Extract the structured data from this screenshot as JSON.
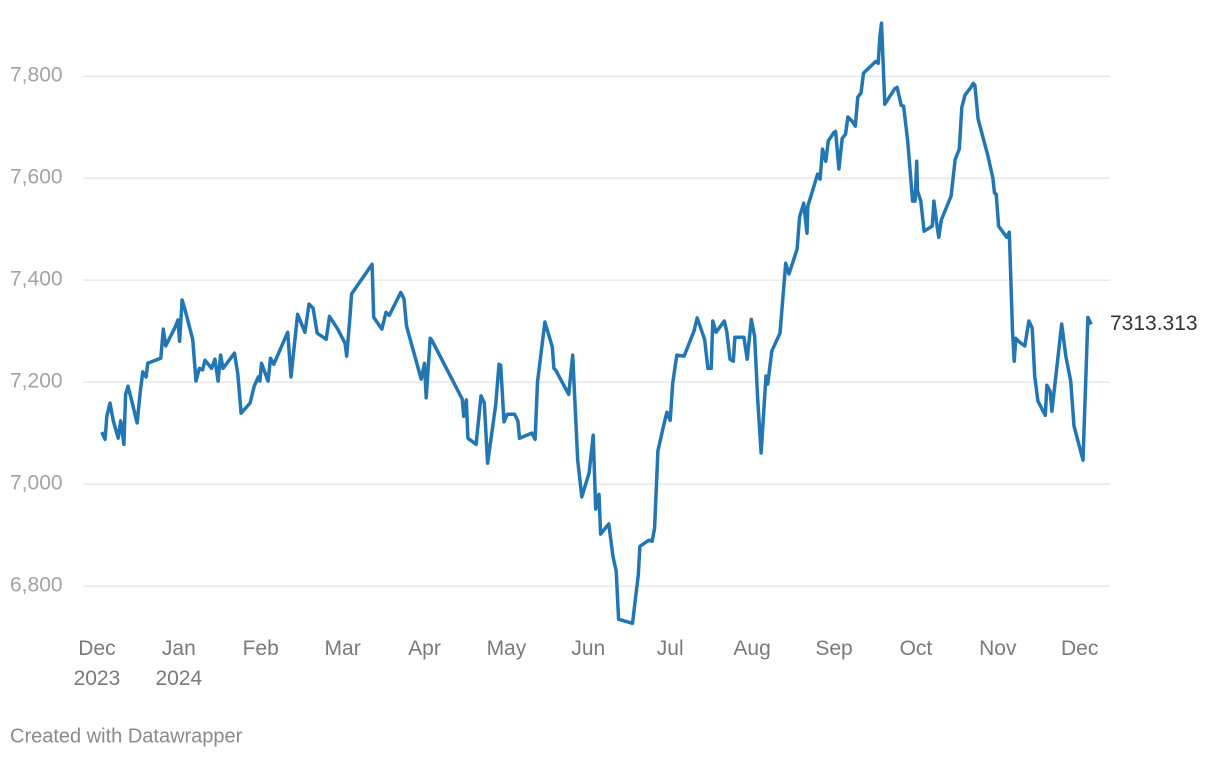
{
  "chart_data": {
    "type": "line",
    "credit": "Created with Datawrapper",
    "last_value_label": "7313.313",
    "color": "#2276b4",
    "grid": true,
    "xlim": [
      -0.17,
      12.37
    ],
    "ylim": [
      6710,
      7920
    ],
    "xticks": [
      {
        "value": 0,
        "label": "Dec 2023"
      },
      {
        "value": 1,
        "label": "Jan 2024"
      },
      {
        "value": 2,
        "label": "Feb"
      },
      {
        "value": 3,
        "label": "Mar"
      },
      {
        "value": 4,
        "label": "Apr"
      },
      {
        "value": 5,
        "label": "May"
      },
      {
        "value": 6,
        "label": "Jun"
      },
      {
        "value": 7,
        "label": "Jul"
      },
      {
        "value": 8,
        "label": "Aug"
      },
      {
        "value": 9,
        "label": "Sep"
      },
      {
        "value": 10,
        "label": "Oct"
      },
      {
        "value": 11,
        "label": "Nov"
      },
      {
        "value": 12,
        "label": "Dec"
      }
    ],
    "yticks": [
      {
        "value": 6800,
        "label": "6,800"
      },
      {
        "value": 7000,
        "label": "7,000"
      },
      {
        "value": 7200,
        "label": "7,200"
      },
      {
        "value": 7400,
        "label": "7,400"
      },
      {
        "value": 7600,
        "label": "7,600"
      },
      {
        "value": 7800,
        "label": "7,800"
      }
    ],
    "x": [
      0.06,
      0.1,
      0.12,
      0.16,
      0.2,
      0.26,
      0.29,
      0.33,
      0.35,
      0.38,
      0.44,
      0.49,
      0.53,
      0.56,
      0.6,
      0.62,
      0.78,
      0.81,
      0.84,
      0.95,
      0.99,
      1.01,
      1.04,
      1.07,
      1.17,
      1.21,
      1.25,
      1.29,
      1.32,
      1.4,
      1.44,
      1.48,
      1.51,
      1.54,
      1.68,
      1.72,
      1.76,
      1.87,
      1.92,
      1.97,
      1.99,
      2.01,
      2.09,
      2.12,
      2.16,
      2.33,
      2.37,
      2.45,
      2.54,
      2.59,
      2.64,
      2.69,
      2.8,
      2.84,
      2.94,
      3.03,
      3.05,
      3.09,
      3.11,
      3.36,
      3.38,
      3.48,
      3.53,
      3.57,
      3.71,
      3.75,
      3.78,
      3.96,
      4.0,
      4.02,
      4.07,
      4.09,
      4.46,
      4.48,
      4.51,
      4.53,
      4.63,
      4.69,
      4.73,
      4.77,
      4.87,
      4.91,
      4.93,
      4.97,
      5.01,
      5.1,
      5.14,
      5.16,
      5.31,
      5.35,
      5.38,
      5.47,
      5.56,
      5.58,
      5.6,
      5.76,
      5.81,
      5.87,
      5.92,
      6.01,
      6.06,
      6.09,
      6.13,
      6.15,
      6.25,
      6.3,
      6.34,
      6.37,
      6.54,
      6.61,
      6.63,
      6.74,
      6.78,
      6.81,
      6.85,
      6.91,
      6.96,
      7.0,
      7.03,
      7.08,
      7.17,
      7.29,
      7.33,
      7.42,
      7.46,
      7.5,
      7.52,
      7.56,
      7.66,
      7.69,
      7.73,
      7.77,
      7.79,
      7.9,
      7.94,
      7.99,
      8.03,
      8.07,
      8.11,
      8.17,
      8.19,
      8.24,
      8.34,
      8.41,
      8.45,
      8.55,
      8.58,
      8.63,
      8.67,
      8.68,
      8.8,
      8.83,
      8.86,
      8.9,
      8.93,
      9.0,
      9.02,
      9.06,
      9.1,
      9.14,
      9.17,
      9.22,
      9.26,
      9.29,
      9.33,
      9.36,
      9.51,
      9.54,
      9.56,
      9.58,
      9.62,
      9.74,
      9.77,
      9.82,
      9.85,
      9.9,
      9.96,
      9.99,
      10.01,
      10.02,
      10.06,
      10.1,
      10.2,
      10.22,
      10.26,
      10.28,
      10.31,
      10.43,
      10.48,
      10.53,
      10.56,
      10.6,
      10.67,
      10.7,
      10.72,
      10.76,
      10.88,
      10.94,
      10.96,
      10.98,
      11.01,
      11.11,
      11.14,
      11.18,
      11.2,
      11.22,
      11.27,
      11.33,
      11.38,
      11.42,
      11.45,
      11.49,
      11.58,
      11.6,
      11.64,
      11.66,
      11.78,
      11.83,
      11.89,
      11.93,
      12.04,
      12.1,
      12.14
    ],
    "values": [
      7102,
      7088,
      7133,
      7159,
      7124,
      7090,
      7124,
      7078,
      7176,
      7192,
      7153,
      7120,
      7182,
      7220,
      7210,
      7237,
      7247,
      7304,
      7271,
      7306,
      7322,
      7280,
      7361,
      7345,
      7284,
      7202,
      7227,
      7224,
      7243,
      7227,
      7245,
      7202,
      7253,
      7227,
      7257,
      7216,
      7139,
      7159,
      7192,
      7210,
      7202,
      7237,
      7202,
      7247,
      7235,
      7298,
      7210,
      7333,
      7298,
      7353,
      7345,
      7296,
      7284,
      7329,
      7304,
      7276,
      7251,
      7329,
      7373,
      7431,
      7327,
      7304,
      7337,
      7331,
      7376,
      7363,
      7310,
      7206,
      7237,
      7169,
      7286,
      7282,
      7167,
      7133,
      7165,
      7090,
      7078,
      7173,
      7159,
      7041,
      7157,
      7235,
      7233,
      7122,
      7137,
      7137,
      7124,
      7090,
      7100,
      7088,
      7200,
      7318,
      7269,
      7227,
      7224,
      7176,
      7253,
      7047,
      6975,
      7022,
      7096,
      6951,
      6980,
      6902,
      6922,
      6859,
      6829,
      6735,
      6727,
      6822,
      6878,
      6890,
      6888,
      6914,
      7065,
      7108,
      7141,
      7125,
      7198,
      7253,
      7251,
      7300,
      7326,
      7284,
      7227,
      7227,
      7320,
      7298,
      7320,
      7300,
      7245,
      7241,
      7288,
      7288,
      7245,
      7323,
      7290,
      7163,
      7061,
      7212,
      7196,
      7261,
      7296,
      7433,
      7412,
      7461,
      7524,
      7551,
      7492,
      7545,
      7608,
      7598,
      7657,
      7633,
      7673,
      7690,
      7692,
      7618,
      7678,
      7686,
      7720,
      7712,
      7702,
      7759,
      7767,
      7806,
      7829,
      7825,
      7878,
      7904,
      7745,
      7775,
      7778,
      7743,
      7741,
      7673,
      7555,
      7555,
      7633,
      7575,
      7555,
      7496,
      7506,
      7555,
      7504,
      7484,
      7518,
      7565,
      7637,
      7657,
      7739,
      7763,
      7778,
      7786,
      7782,
      7716,
      7643,
      7600,
      7571,
      7569,
      7506,
      7484,
      7494,
      7300,
      7241,
      7286,
      7278,
      7271,
      7320,
      7306,
      7212,
      7163,
      7135,
      7194,
      7182,
      7143,
      7314,
      7251,
      7202,
      7114,
      7047,
      7327,
      7313.313
    ]
  }
}
